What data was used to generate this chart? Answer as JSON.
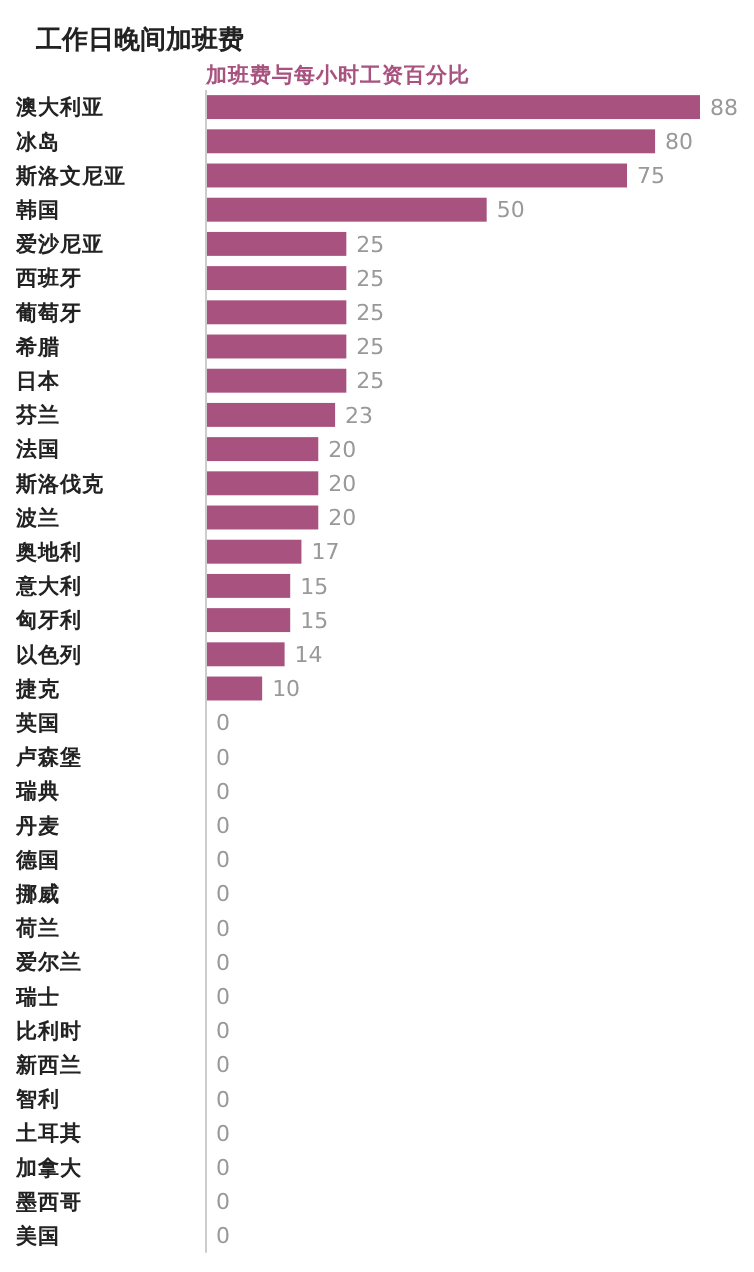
{
  "chart_data": {
    "type": "bar",
    "orientation": "horizontal",
    "title": "工作日晚间加班费",
    "subtitle": "加班费与每小时工资百分比",
    "categories": [
      "澳大利亚",
      "冰岛",
      "斯洛文尼亚",
      "韩国",
      "爱沙尼亚",
      "西班牙",
      "葡萄牙",
      "希腊",
      "日本",
      "芬兰",
      "法国",
      "斯洛伐克",
      "波兰",
      "奥地利",
      "意大利",
      "匈牙利",
      "以色列",
      "捷克",
      "英国",
      "卢森堡",
      "瑞典",
      "丹麦",
      "德国",
      "挪威",
      "荷兰",
      "爱尔兰",
      "瑞士",
      "比利时",
      "新西兰",
      "智利",
      "土耳其",
      "加拿大",
      "墨西哥",
      "美国"
    ],
    "values": [
      88,
      80,
      75,
      50,
      25,
      25,
      25,
      25,
      25,
      23,
      20,
      20,
      20,
      17,
      15,
      15,
      14,
      10,
      0,
      0,
      0,
      0,
      0,
      0,
      0,
      0,
      0,
      0,
      0,
      0,
      0,
      0,
      0,
      0
    ],
    "color": "#a8527f",
    "data_labels": true
  }
}
